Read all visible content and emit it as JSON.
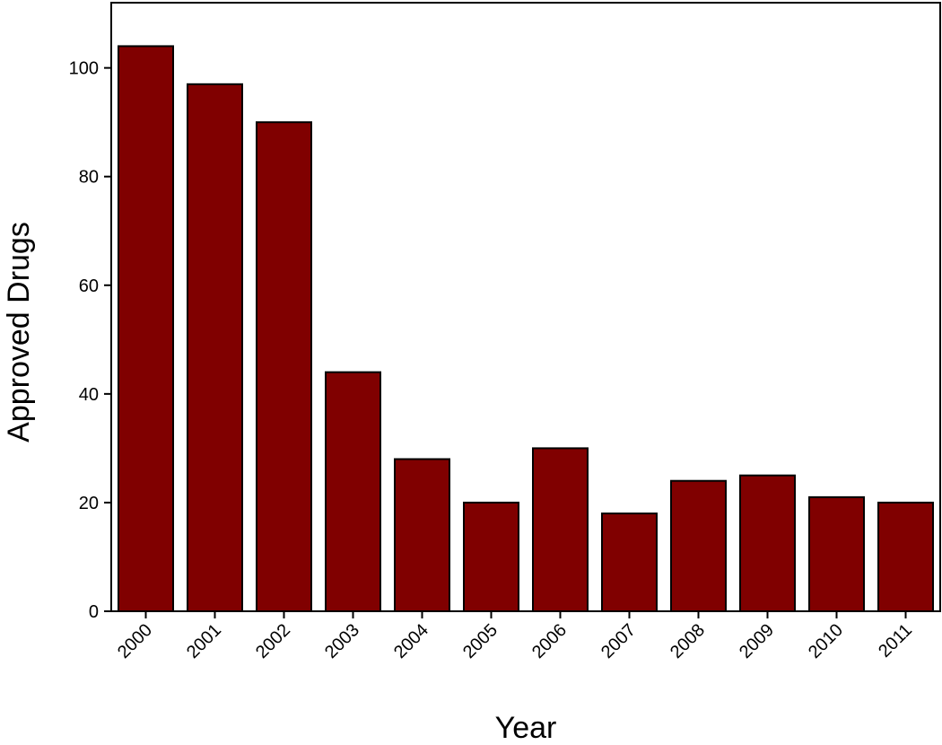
{
  "chart_data": {
    "type": "bar",
    "title": "",
    "xlabel": "Year",
    "ylabel": "Approved Drugs",
    "categories": [
      "2000",
      "2001",
      "2002",
      "2003",
      "2004",
      "2005",
      "2006",
      "2007",
      "2008",
      "2009",
      "2010",
      "2011"
    ],
    "values": [
      104,
      97,
      90,
      44,
      28,
      20,
      30,
      18,
      24,
      25,
      21,
      20
    ],
    "ylim": [
      0,
      112
    ],
    "yticks": [
      0,
      20,
      40,
      60,
      80,
      100
    ],
    "grid": false,
    "bar_color": "#800000",
    "edge_color": "#000000",
    "x_tick_rotation_deg": -45
  }
}
